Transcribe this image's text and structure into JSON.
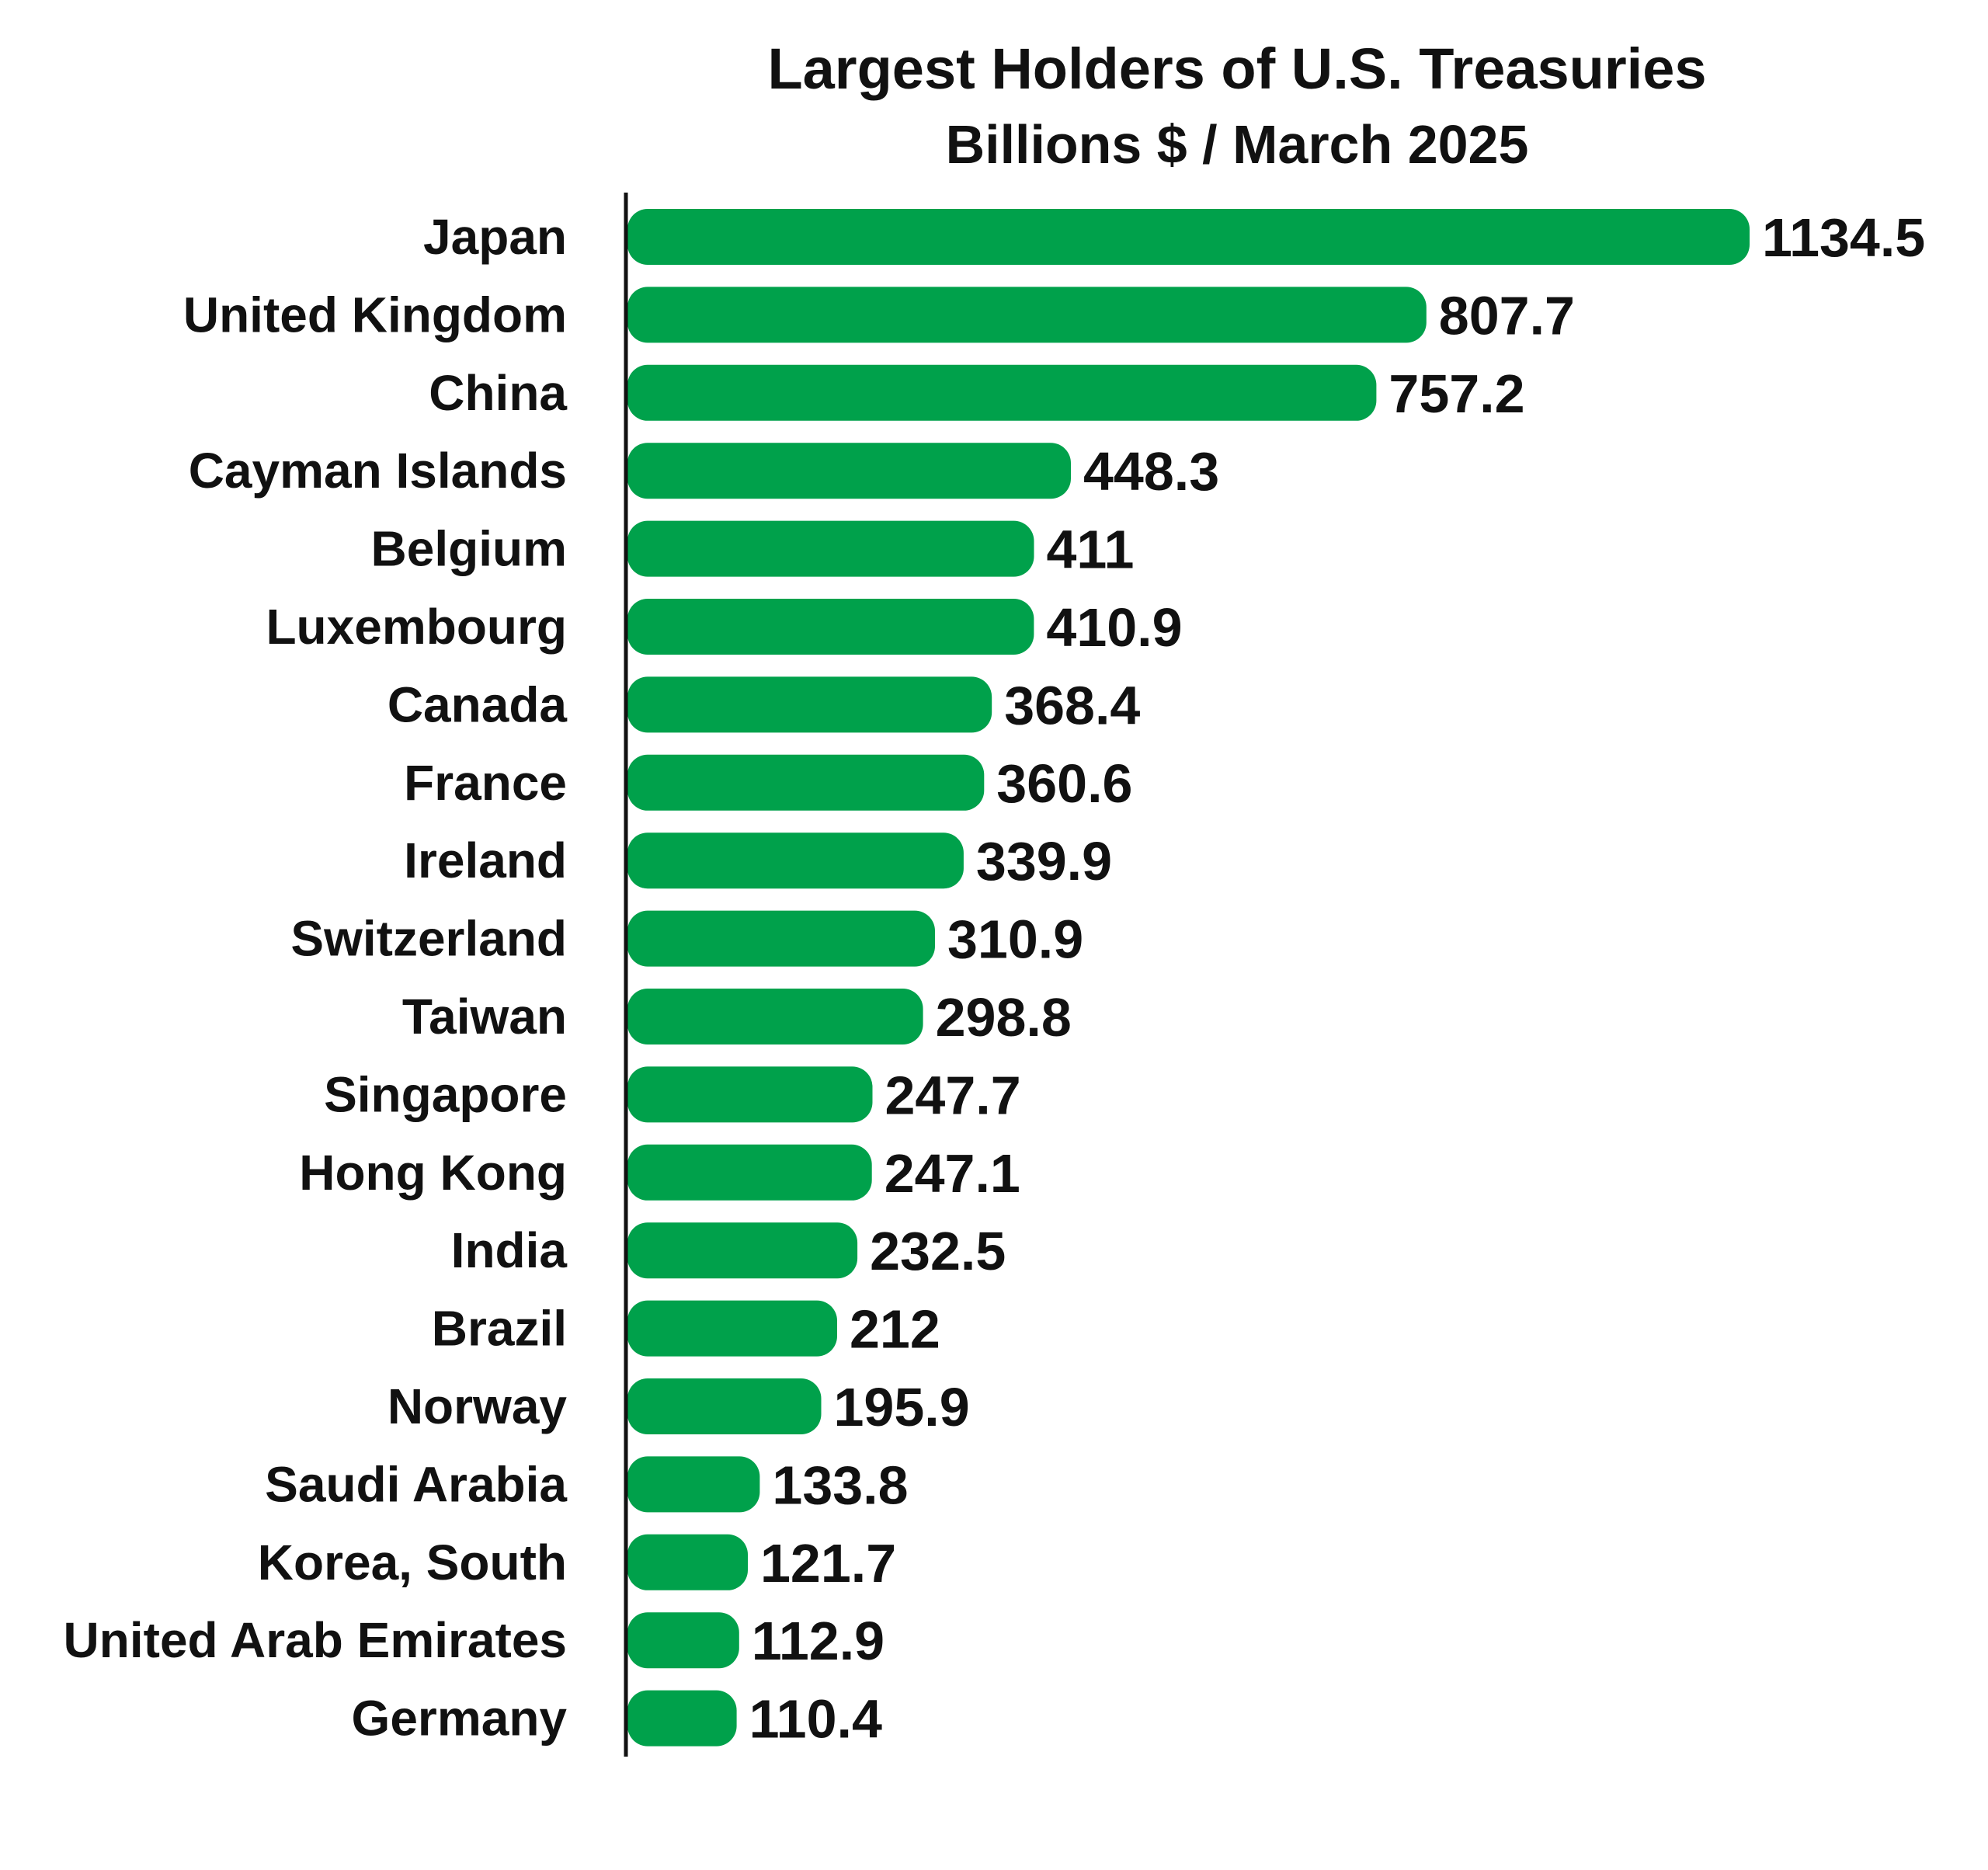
{
  "chart_data": {
    "type": "bar",
    "orientation": "horizontal",
    "title": "Largest Holders of U.S. Treasuries",
    "subtitle": "Billions $ / March 2025",
    "xlabel": "",
    "ylabel": "",
    "categories": [
      "Japan",
      "United Kingdom",
      "China",
      "Cayman Islands",
      "Belgium",
      "Luxembourg",
      "Canada",
      "France",
      "Ireland",
      "Switzerland",
      "Taiwan",
      "Singapore",
      "Hong Kong",
      "India",
      "Brazil",
      "Norway",
      "Saudi Arabia",
      "Korea, South",
      "United Arab Emirates",
      "Germany"
    ],
    "values": [
      1134.5,
      807.7,
      757.2,
      448.3,
      411,
      410.9,
      368.4,
      360.6,
      339.9,
      310.9,
      298.8,
      247.7,
      247.1,
      232.5,
      212,
      195.9,
      133.8,
      121.7,
      112.9,
      110.4
    ],
    "value_labels": [
      "1134.5",
      "807.7",
      "757.2",
      "448.3",
      "411",
      "410.9",
      "368.4",
      "360.6",
      "339.9",
      "310.9",
      "298.8",
      "247.7",
      "247.1",
      "232.5",
      "212",
      "195.9",
      "133.8",
      "121.7",
      "112.9",
      "110.4"
    ],
    "xlim": [
      0,
      1134.5
    ],
    "grid": false,
    "legend": "none",
    "colors": {
      "bar": "#00A14B",
      "text": "#111111",
      "axis": "#111111",
      "background": "#ffffff"
    }
  }
}
